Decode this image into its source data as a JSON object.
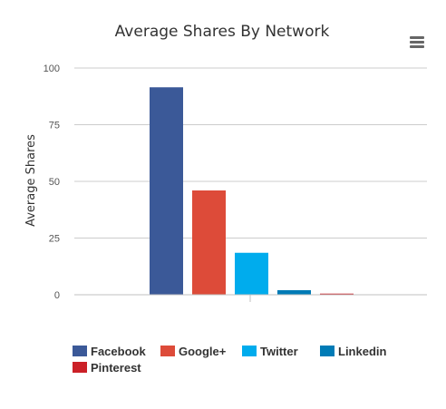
{
  "chart_data": {
    "type": "bar",
    "title": "Average Shares By Network",
    "ylabel": "Average Shares",
    "xlabel": "",
    "ylim": [
      0,
      100
    ],
    "yticks": [
      0,
      25,
      50,
      75,
      100
    ],
    "grid": true,
    "legend_position": "bottom-left",
    "series": [
      {
        "name": "Facebook",
        "value": 91.5,
        "color": "#3B5998"
      },
      {
        "name": "Google+",
        "value": 46,
        "color": "#DD4B39"
      },
      {
        "name": "Twitter",
        "value": 18.5,
        "color": "#00ACED"
      },
      {
        "name": "Linkedin",
        "value": 2,
        "color": "#007BB6"
      },
      {
        "name": "Pinterest",
        "value": 0.5,
        "color": "#CB2027"
      }
    ]
  },
  "toolbar": {
    "menu_icon": "hamburger-menu-icon"
  }
}
